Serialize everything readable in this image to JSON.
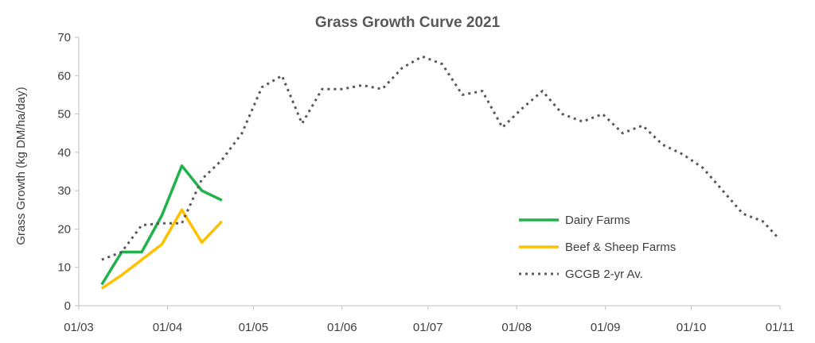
{
  "chart_data": {
    "type": "line",
    "title": "Grass Growth Curve 2021",
    "xlabel": "",
    "ylabel": "Grass Growth (kg DM/ha/day)",
    "ylim": [
      0,
      70
    ],
    "yticks": [
      "0",
      "10",
      "20",
      "30",
      "40",
      "50",
      "60",
      "70"
    ],
    "xlim": [
      "2021-03-01",
      "2021-11-01"
    ],
    "xticks": [
      {
        "date": "2021-03-01",
        "label": "01/03"
      },
      {
        "date": "2021-04-01",
        "label": "01/04"
      },
      {
        "date": "2021-05-01",
        "label": "01/05"
      },
      {
        "date": "2021-06-01",
        "label": "01/06"
      },
      {
        "date": "2021-07-01",
        "label": "01/07"
      },
      {
        "date": "2021-08-01",
        "label": "01/08"
      },
      {
        "date": "2021-09-01",
        "label": "01/09"
      },
      {
        "date": "2021-10-01",
        "label": "01/10"
      },
      {
        "date": "2021-11-01",
        "label": "01/11"
      }
    ],
    "grid": false,
    "legend_position": "right",
    "series": [
      {
        "name": "Dairy Farms",
        "color": "#22b24c",
        "style": "solid",
        "x": [
          "2021-03-09",
          "2021-03-16",
          "2021-03-23",
          "2021-03-30",
          "2021-04-06",
          "2021-04-13",
          "2021-04-20"
        ],
        "y": [
          5.5,
          14,
          14,
          23.5,
          36.5,
          30,
          27.5
        ]
      },
      {
        "name": "Beef & Sheep Farms",
        "color": "#ffc000",
        "style": "solid",
        "x": [
          "2021-03-09",
          "2021-03-16",
          "2021-03-23",
          "2021-03-30",
          "2021-04-06",
          "2021-04-13",
          "2021-04-20"
        ],
        "y": [
          4.5,
          8,
          12,
          16,
          25,
          16.5,
          22
        ]
      },
      {
        "name": "GCGB 2-yr Av.",
        "color": "#595959",
        "style": "dotted",
        "x": [
          "2021-03-09",
          "2021-03-16",
          "2021-03-23",
          "2021-03-30",
          "2021-04-06",
          "2021-04-13",
          "2021-04-20",
          "2021-04-27",
          "2021-05-04",
          "2021-05-11",
          "2021-05-18",
          "2021-05-25",
          "2021-06-01",
          "2021-06-08",
          "2021-06-15",
          "2021-06-22",
          "2021-06-29",
          "2021-07-06",
          "2021-07-13",
          "2021-07-20",
          "2021-07-27",
          "2021-08-03",
          "2021-08-10",
          "2021-08-17",
          "2021-08-24",
          "2021-08-31",
          "2021-09-07",
          "2021-09-14",
          "2021-09-21",
          "2021-09-28",
          "2021-10-05",
          "2021-10-12",
          "2021-10-19",
          "2021-10-26",
          "2021-10-31"
        ],
        "y": [
          12,
          14,
          21,
          21.5,
          21.5,
          33,
          38,
          45,
          57,
          60,
          47.5,
          56.5,
          56.5,
          57.5,
          56.5,
          62,
          65,
          63,
          55,
          56,
          46.5,
          51.5,
          56,
          50,
          48,
          50,
          45,
          47,
          42,
          39.5,
          36,
          30,
          24,
          22,
          18
        ]
      }
    ]
  }
}
